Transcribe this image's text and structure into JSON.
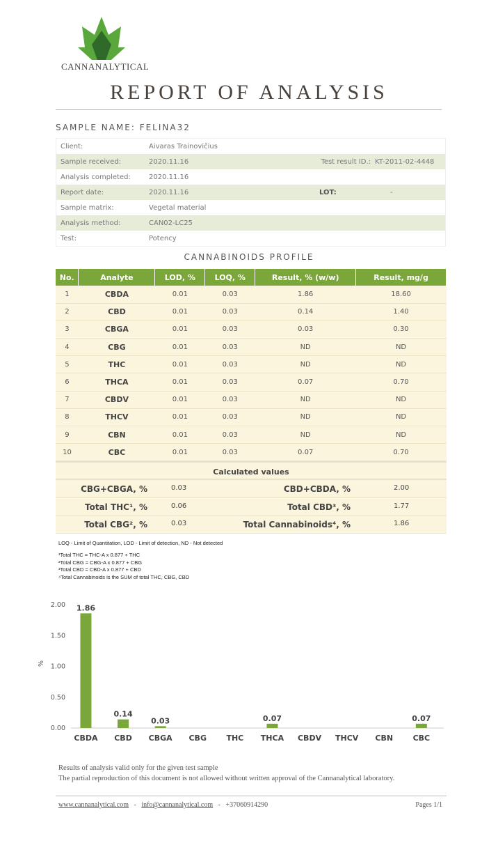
{
  "logo": {
    "text": "CANNANALYTICAL"
  },
  "title": "REPORT OF ANALYSIS",
  "sample_name": "SAMPLE NAME: FELINA32",
  "info": [
    {
      "label": "Client:",
      "value": "Aivaras Trainovičius"
    },
    {
      "label": "Sample received:",
      "value": "2020.11.16",
      "label2": "Test result ID.:",
      "value2": "KT-2011-02-4448"
    },
    {
      "label": "Analysis completed:",
      "value": "2020.11.16"
    },
    {
      "label": "Report date:",
      "value": "2020.11.16",
      "label2": "LOT:",
      "value2": "-"
    },
    {
      "label": "Sample matrix:",
      "value": "Vegetal material"
    },
    {
      "label": "Analysis method:",
      "value": "CAN02-LC25"
    },
    {
      "label": "Test:",
      "value": "Potency"
    }
  ],
  "profile_title": "CANNABINOIDS PROFILE",
  "columns": [
    "No.",
    "Analyte",
    "LOD, %",
    "LOQ, %",
    "Result, % (w/w)",
    "Result, mg/g"
  ],
  "rows": [
    [
      "1",
      "CBDA",
      "0.01",
      "0.03",
      "1.86",
      "18.60"
    ],
    [
      "2",
      "CBD",
      "0.01",
      "0.03",
      "0.14",
      "1.40"
    ],
    [
      "3",
      "CBGA",
      "0.01",
      "0.03",
      "0.03",
      "0.30"
    ],
    [
      "4",
      "CBG",
      "0.01",
      "0.03",
      "ND",
      "ND"
    ],
    [
      "5",
      "THC",
      "0.01",
      "0.03",
      "ND",
      "ND"
    ],
    [
      "6",
      "THCA",
      "0.01",
      "0.03",
      "0.07",
      "0.70"
    ],
    [
      "7",
      "CBDV",
      "0.01",
      "0.03",
      "ND",
      "ND"
    ],
    [
      "8",
      "THCV",
      "0.01",
      "0.03",
      "ND",
      "ND"
    ],
    [
      "9",
      "CBN",
      "0.01",
      "0.03",
      "ND",
      "ND"
    ],
    [
      "10",
      "CBC",
      "0.01",
      "0.03",
      "0.07",
      "0.70"
    ]
  ],
  "calculated": {
    "title": "Calculated values",
    "rows": [
      {
        "l1": "CBG+CBGA, %",
        "v1": "0.03",
        "l2": "CBD+CBDA, %",
        "v2": "2.00"
      },
      {
        "l1": "Total THC¹, %",
        "v1": "0.06",
        "l2": "Total CBD³, %",
        "v2": "1.77"
      },
      {
        "l1": "Total CBG², %",
        "v1": "0.03",
        "l2": "Total Cannabinoids⁴, %",
        "v2": "1.86"
      }
    ]
  },
  "legend_note": "LOQ - Limit of Quantitation, LOD - Limit of detection, ND - Not detected",
  "footnotes": [
    "¹Total THC =  THC-A x 0.877 + THC",
    "²Total CBG = CBG-A x 0.877 + CBG",
    "³Total CBD = CBD-A x 0.877 + CBD",
    "⁴Total Cannabinoids is the SUM of total THC, CBG, CBD"
  ],
  "chart_data": {
    "type": "bar",
    "ylabel": "%",
    "ylim": [
      0,
      2
    ],
    "yticks": [
      "0.00",
      "0.50",
      "1.00",
      "1.50",
      "2.00"
    ],
    "categories": [
      "CBDA",
      "CBD",
      "CBGA",
      "CBG",
      "THC",
      "THCA",
      "CBDV",
      "THCV",
      "CBN",
      "CBC"
    ],
    "values": [
      1.86,
      0.14,
      0.03,
      0,
      0,
      0.07,
      0,
      0,
      0,
      0.07
    ],
    "labels": [
      "1.86",
      "0.14",
      "0.03",
      "",
      "",
      "0.07",
      "",
      "",
      "",
      "0.07"
    ],
    "color": "#7aa63a"
  },
  "disclaimer": [
    "Results of analysis valid only for the given test sample",
    "The partial reproduction of this document is not allowed without written approval of the Cannanalytical laboratory."
  ],
  "footer": {
    "website": "www.cannanalytical.com",
    "email": "info@cannanalytical.com",
    "phone": "+37060914290",
    "sep": "-",
    "pages": "Pages 1/1"
  }
}
